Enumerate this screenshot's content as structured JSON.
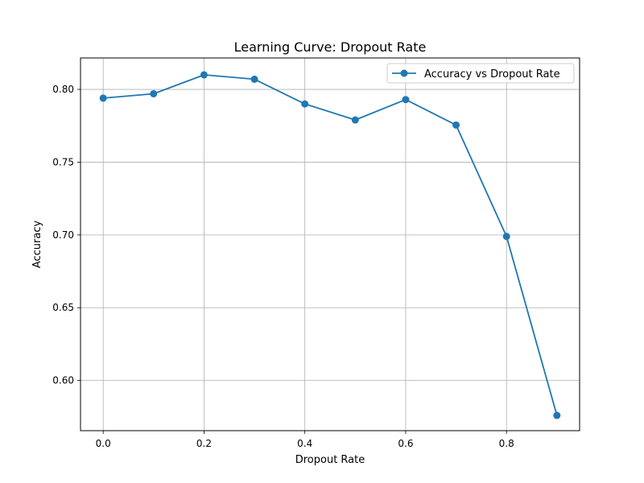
{
  "chart_data": {
    "type": "line",
    "title": "Learning Curve: Dropout Rate",
    "xlabel": "Dropout Rate",
    "ylabel": "Accuracy",
    "xlim": [
      -0.045,
      0.945
    ],
    "ylim": [
      0.5655,
      0.8216
    ],
    "xticks": [
      0.0,
      0.2,
      0.4,
      0.6,
      0.8
    ],
    "xtick_labels": [
      "0.0",
      "0.2",
      "0.4",
      "0.6",
      "0.8"
    ],
    "yticks": [
      0.6,
      0.65,
      0.7,
      0.75,
      0.8
    ],
    "ytick_labels": [
      "0.60",
      "0.65",
      "0.70",
      "0.75",
      "0.80"
    ],
    "grid": true,
    "legend_position": "top-right",
    "series": [
      {
        "name": "Accuracy vs Dropout Rate",
        "color": "#1f77b4",
        "marker": "circle",
        "x": [
          0.0,
          0.1,
          0.2,
          0.3,
          0.4,
          0.5,
          0.6,
          0.7,
          0.8,
          0.9
        ],
        "y": [
          0.794,
          0.797,
          0.81,
          0.807,
          0.79,
          0.779,
          0.793,
          0.7755,
          0.699,
          0.576
        ]
      }
    ]
  }
}
